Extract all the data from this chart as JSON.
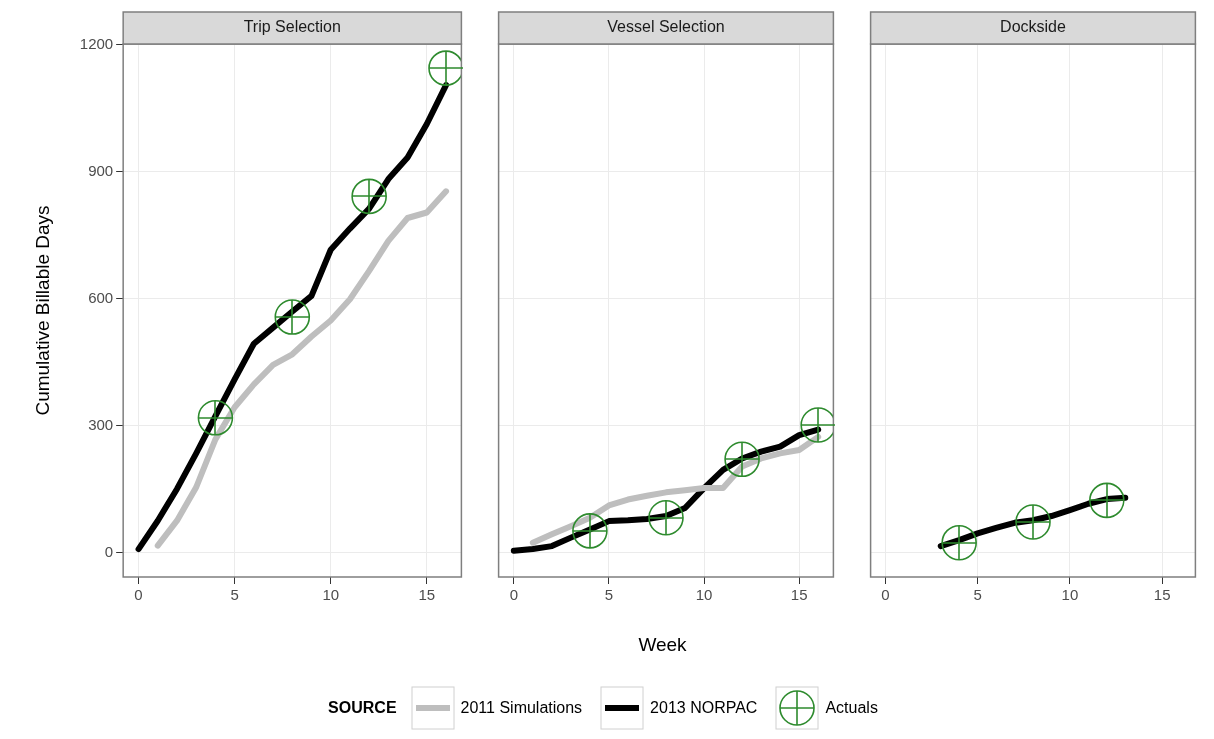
{
  "chart_data": [
    {
      "type": "line",
      "title": "Trip Selection",
      "ylabel": "Cumulative Billable Days",
      "legend": "bottom",
      "legend_title": "SOURCE",
      "xlim": [
        -0.8,
        16.8
      ],
      "ylim": [
        -57,
        1202
      ],
      "xticks": [
        0,
        5,
        10,
        15
      ],
      "yticks": [
        0,
        300,
        600,
        900,
        1200
      ],
      "grid": true,
      "series": [
        {
          "name": "2011 Simulations",
          "color": "#bebebe",
          "x": [
            1,
            2,
            3,
            4,
            5,
            6,
            7,
            8,
            9,
            10,
            11,
            12,
            13,
            14,
            15,
            16
          ],
          "values": [
            17,
            76,
            155,
            268,
            344,
            398,
            444,
            469,
            511,
            549,
            599,
            666,
            737,
            791,
            804,
            854
          ]
        },
        {
          "name": "2013 NORPAC",
          "color": "#000000",
          "x": [
            0,
            1,
            2,
            3,
            4,
            5,
            6,
            7,
            8,
            9,
            10,
            11,
            12,
            13,
            14,
            15,
            16
          ],
          "values": [
            9,
            76,
            151,
            235,
            323,
            410,
            494,
            532,
            570,
            607,
            716,
            766,
            813,
            883,
            934,
            1013,
            1105
          ]
        },
        {
          "name": "Actuals",
          "type": "scatter",
          "marker": "circle",
          "color": "#2e8b2e",
          "x": [
            4,
            8,
            12,
            16
          ],
          "values": [
            319,
            557,
            842,
            1145
          ]
        }
      ]
    },
    {
      "type": "line",
      "title": "Vessel Selection",
      "xlabel": "Week",
      "xlim": [
        -0.8,
        16.8
      ],
      "ylim": [
        -57,
        1202
      ],
      "xticks": [
        0,
        5,
        10,
        15
      ],
      "yticks": [
        0,
        300,
        600,
        900,
        1200
      ],
      "tick_labels": "x",
      "grid": true,
      "series": [
        {
          "color": "#bebebe",
          "x": [
            1,
            2,
            3,
            4,
            5,
            6,
            7,
            8,
            9,
            10,
            11,
            12,
            13,
            14,
            15,
            16
          ],
          "values": [
            24,
            44,
            63,
            83,
            112,
            126,
            135,
            143,
            148,
            153,
            153,
            204,
            223,
            235,
            243,
            274
          ]
        },
        {
          "color": "#000000",
          "x": [
            0,
            1,
            2,
            3,
            4,
            5,
            6,
            7,
            8,
            9,
            10,
            11,
            12,
            13,
            14,
            15,
            16
          ],
          "values": [
            5,
            9,
            16,
            36,
            55,
            75,
            77,
            80,
            87,
            106,
            153,
            196,
            223,
            239,
            251,
            278,
            291
          ]
        },
        {
          "type": "scatter",
          "marker": "circle",
          "color": "#2e8b2e",
          "x": [
            4,
            8,
            12,
            16
          ],
          "values": [
            52,
            83,
            221,
            302
          ]
        }
      ]
    },
    {
      "type": "line",
      "title": "Dockside",
      "xlim": [
        -0.8,
        16.8
      ],
      "ylim": [
        -57,
        1202
      ],
      "xticks": [
        0,
        5,
        10,
        15
      ],
      "yticks": [
        0,
        300,
        600,
        900,
        1200
      ],
      "tick_labels": "x",
      "grid": true,
      "series": [
        {
          "color": "#000000",
          "x": [
            3,
            4,
            5,
            6,
            7,
            8,
            9,
            10,
            11,
            12,
            13
          ],
          "values": [
            16,
            30,
            46,
            59,
            71,
            77,
            87,
            101,
            116,
            127,
            130
          ]
        },
        {
          "type": "scatter",
          "marker": "circle",
          "color": "#2e8b2e",
          "x": [
            4,
            8,
            12
          ],
          "values": [
            24,
            73,
            124
          ]
        }
      ]
    }
  ]
}
